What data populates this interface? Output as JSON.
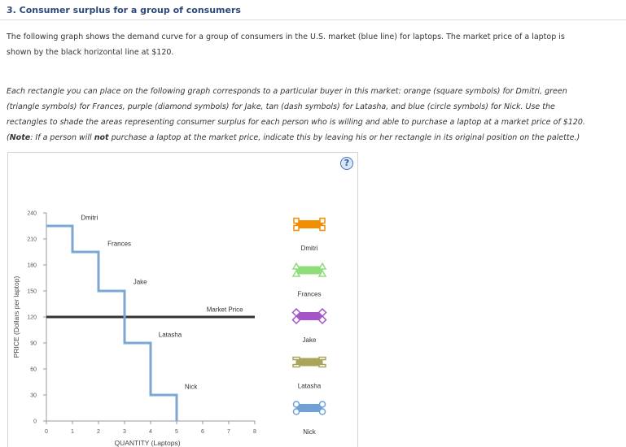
{
  "title": "3. Consumer surplus for a group of consumers",
  "intro": [
    "The following graph shows the demand curve for a group of consumers in the U.S. market (blue line) for laptops. The market price of a laptop is",
    "shown by the black horizontal line at $120."
  ],
  "instructions": [
    "Each rectangle you can place on the following graph corresponds to a particular buyer in this market: orange (square symbols) for Dmitri, green",
    "(triangle symbols) for Frances, purple (diamond symbols) for Jake, tan (dash symbols) for Latasha, and blue (circle symbols) for Nick. Use the",
    "rectangles to shade the areas representing consumer surplus for each person who is willing and able to purchase a laptop at a market price of $120."
  ],
  "note": {
    "prefix": "(",
    "label": "Note",
    "colon": ": If a person will ",
    "emph": "not",
    "rest": " purchase a laptop at the market price, indicate this by leaving his or her rectangle in its original position on the palette.)"
  },
  "help_label": "?",
  "chart_data": {
    "type": "line",
    "xlabel": "QUANTITY (Laptops)",
    "ylabel": "PRICE (Dollars per laptop)",
    "xlim": [
      0,
      8
    ],
    "ylim": [
      0,
      240
    ],
    "x_ticks": [
      0,
      1,
      2,
      3,
      4,
      5,
      6,
      7,
      8
    ],
    "y_ticks": [
      0,
      30,
      60,
      90,
      120,
      150,
      180,
      210,
      240
    ],
    "demand_curve": {
      "color": "#7ba7d3",
      "steps": [
        {
          "buyer": "Dmitri",
          "from": 0,
          "to": 1,
          "price": 225
        },
        {
          "buyer": "Frances",
          "from": 1,
          "to": 2,
          "price": 195
        },
        {
          "buyer": "Jake",
          "from": 2,
          "to": 3,
          "price": 150
        },
        {
          "buyer": "Latasha",
          "from": 3,
          "to": 4,
          "price": 90
        },
        {
          "buyer": "Nick",
          "from": 4,
          "to": 5,
          "price": 30
        }
      ]
    },
    "market_price": {
      "value": 120,
      "label": "Market Price",
      "color": "#333333"
    },
    "buyer_labels": [
      {
        "text": "Dmitri",
        "x": 1.65,
        "y": 232
      },
      {
        "text": "Frances",
        "x": 2.8,
        "y": 202
      },
      {
        "text": "Jake",
        "x": 3.6,
        "y": 158
      },
      {
        "text": "Latasha",
        "x": 4.75,
        "y": 97
      },
      {
        "text": "Nick",
        "x": 5.55,
        "y": 37
      },
      {
        "text": "Market Price",
        "x": 6.85,
        "y": 126
      }
    ]
  },
  "palette": [
    {
      "name": "Dmitri",
      "color": "#f28c00",
      "symbol": "square"
    },
    {
      "name": "Frances",
      "color": "#8fdc7a",
      "symbol": "triangle"
    },
    {
      "name": "Jake",
      "color": "#a655c8",
      "symbol": "diamond"
    },
    {
      "name": "Latasha",
      "color": "#a9a55a",
      "symbol": "dash"
    },
    {
      "name": "Nick",
      "color": "#6fa0d8",
      "symbol": "circle"
    }
  ]
}
